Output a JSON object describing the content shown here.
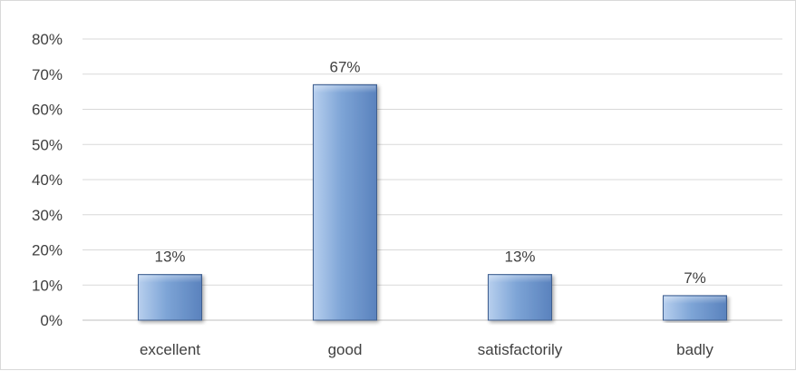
{
  "chart_data": {
    "type": "bar",
    "title": "",
    "xlabel": "",
    "ylabel": "",
    "categories": [
      "excellent",
      "good",
      "satisfactorily",
      "badly"
    ],
    "values": [
      13,
      67,
      13,
      7
    ],
    "data_labels": [
      "13%",
      "67%",
      "13%",
      "7%"
    ],
    "ylim": [
      0,
      80
    ],
    "y_ticks": [
      0,
      10,
      20,
      30,
      40,
      50,
      60,
      70,
      80
    ],
    "y_tick_labels": [
      "0%",
      "10%",
      "20%",
      "30%",
      "40%",
      "50%",
      "60%",
      "70%",
      "80%"
    ],
    "value_unit": "%",
    "grid": true,
    "legend": "none",
    "colors": {
      "bar_light": "#b7cfee",
      "bar_mid": "#7da4d6",
      "bar_dark": "#5a82bd",
      "bar_edge": "#3f5f8f",
      "grid": "#d9d9d9",
      "axis": "#bfbfbf",
      "text": "#404040"
    }
  }
}
